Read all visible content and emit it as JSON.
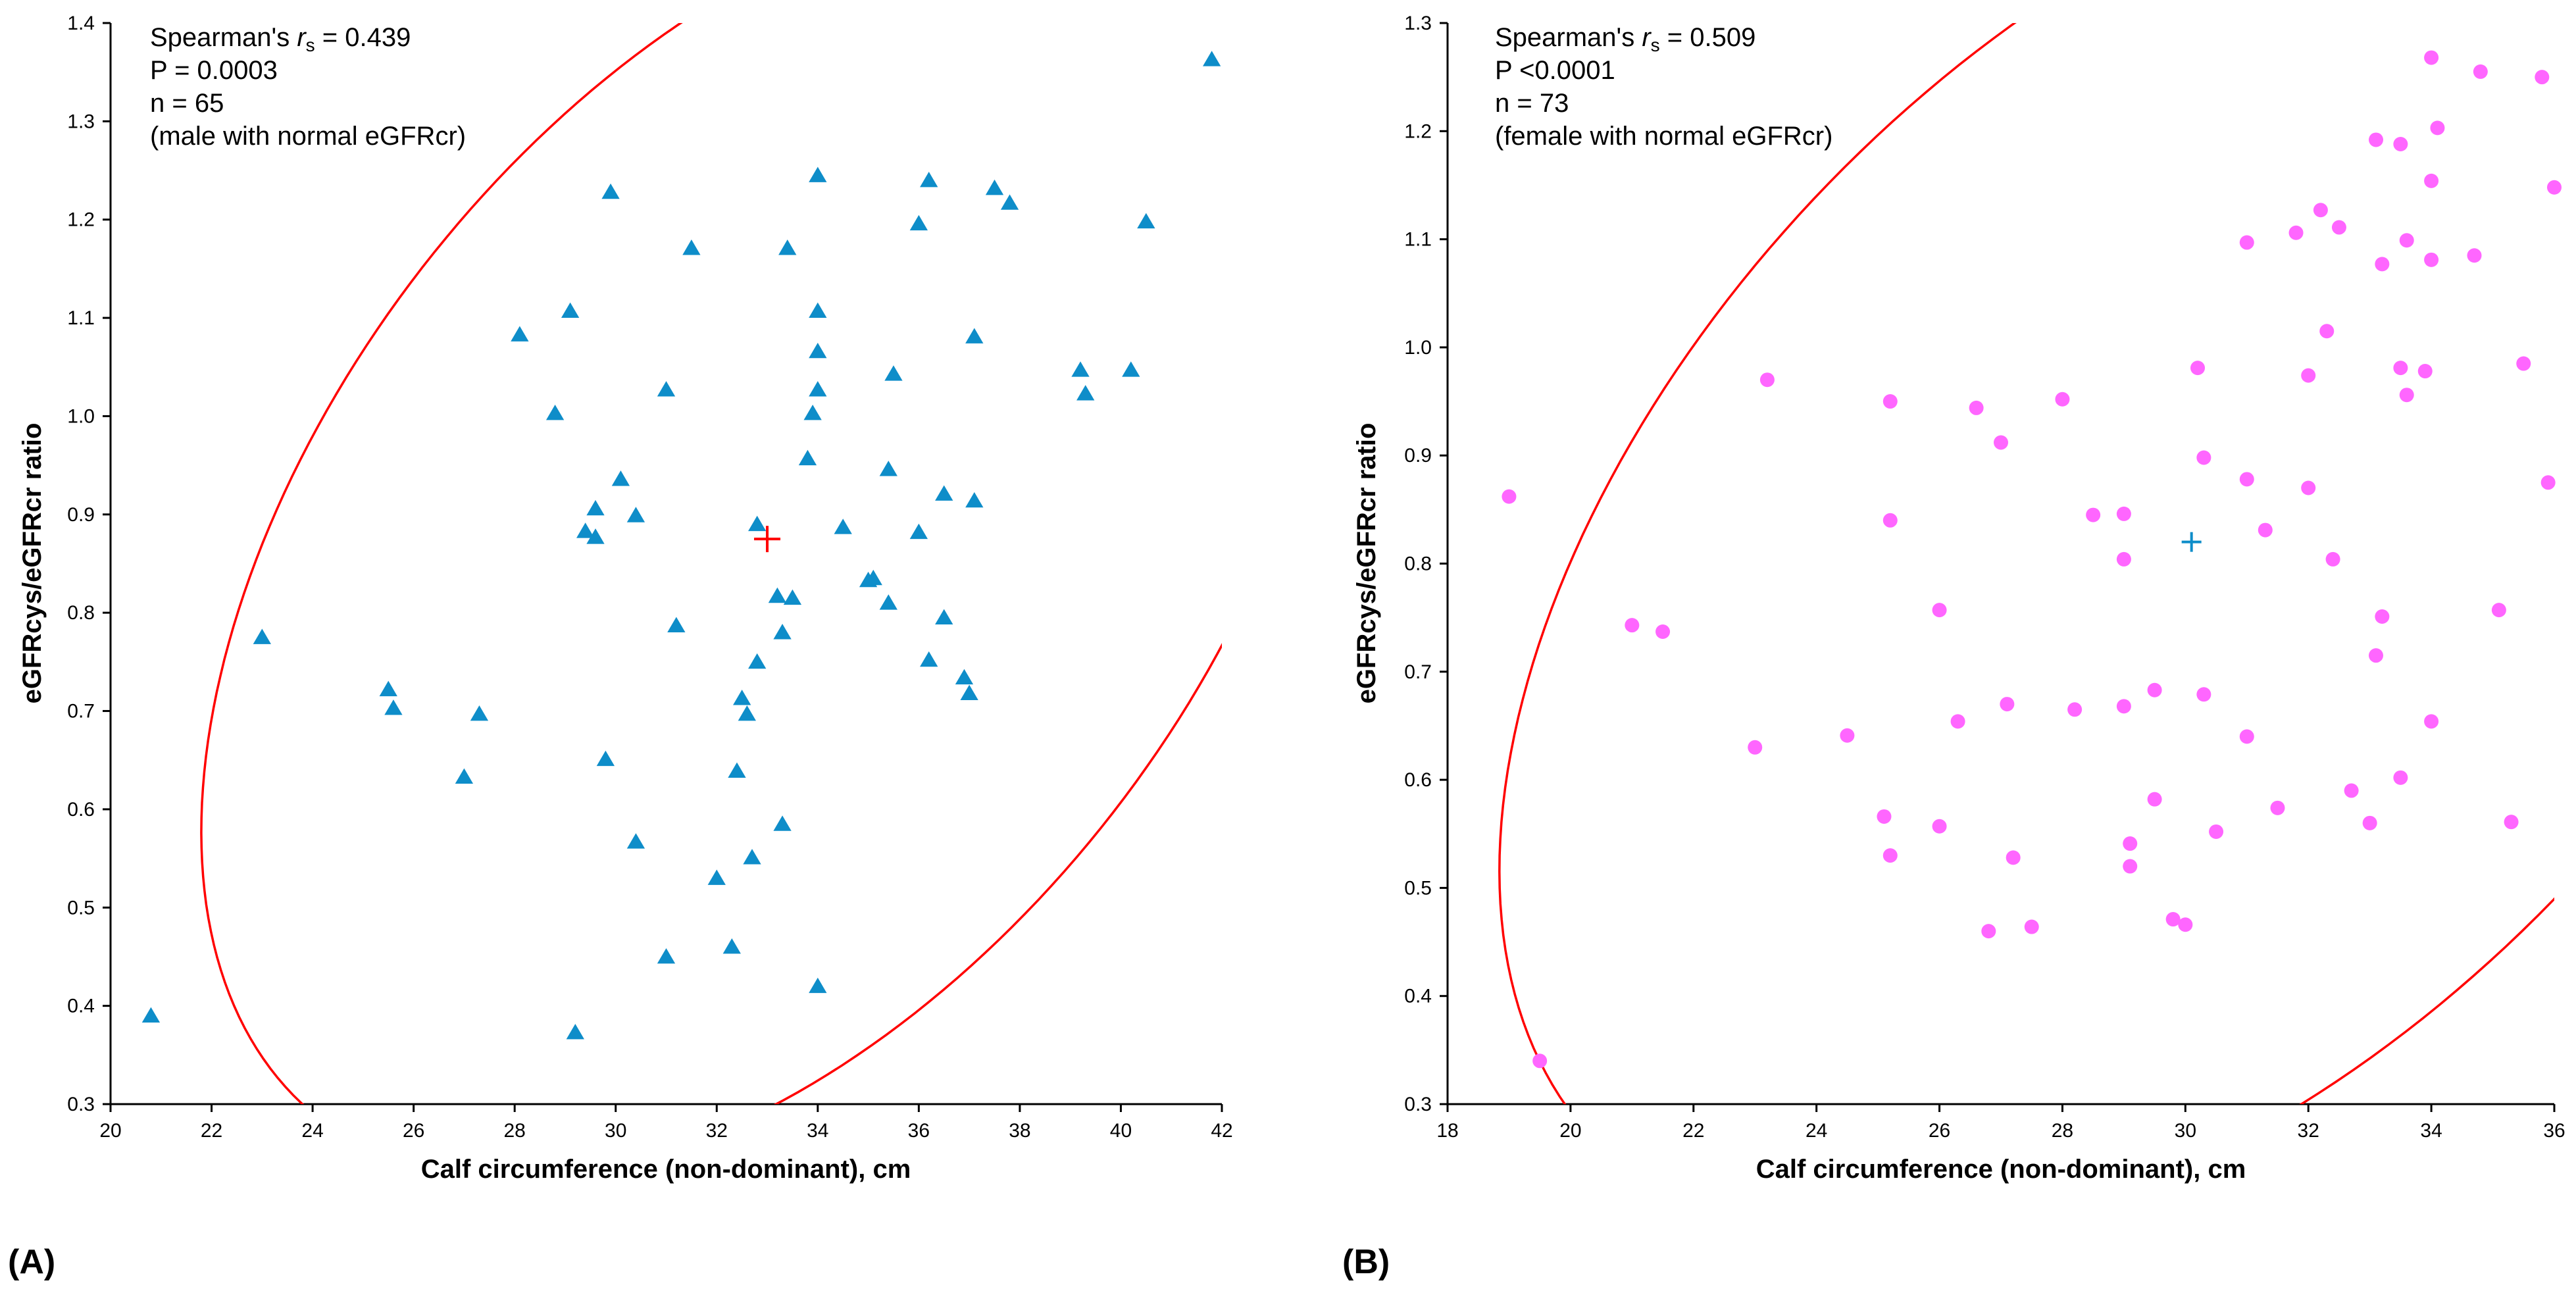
{
  "chart_data": [
    {
      "type": "scatter",
      "panel_label": "(A)",
      "xlabel": "Calf circumference (non-dominant), cm",
      "ylabel": "eGFRcys/eGFRcr ratio",
      "xlim": [
        20,
        42
      ],
      "ylim": [
        0.3,
        1.4
      ],
      "xticks": [
        "20",
        "22",
        "24",
        "26",
        "28",
        "30",
        "32",
        "34",
        "36",
        "38",
        "40",
        "42"
      ],
      "yticks": [
        "0.3",
        "0.4",
        "0.5",
        "0.6",
        "0.7",
        "0.8",
        "0.9",
        "1.0",
        "1.1",
        "1.2",
        "1.3",
        "1.4"
      ],
      "grid": false,
      "annotation": {
        "line1_prefix": "Spearman's ",
        "line1_r": "r",
        "line1_sub": "s",
        "line1_suffix": " = 0.439",
        "line2": "P = 0.0003",
        "line3": "n = 65",
        "line4": "(male with normal eGFRcr)"
      },
      "marker": "triangle",
      "marker_color": "#0e8dc9",
      "mean_marker_color": "#ff0000",
      "ellipse_color": "#ff0000",
      "mean": [
        33.0,
        0.875
      ],
      "points": [
        [
          20.8,
          0.39
        ],
        [
          23.0,
          0.775
        ],
        [
          25.5,
          0.722
        ],
        [
          25.6,
          0.703
        ],
        [
          27.0,
          0.633
        ],
        [
          27.3,
          0.697
        ],
        [
          28.1,
          1.083
        ],
        [
          28.8,
          1.003
        ],
        [
          29.1,
          1.107
        ],
        [
          29.2,
          0.373
        ],
        [
          29.4,
          0.883
        ],
        [
          29.6,
          0.906
        ],
        [
          29.6,
          0.877
        ],
        [
          29.8,
          0.651
        ],
        [
          29.9,
          1.228
        ],
        [
          30.1,
          0.936
        ],
        [
          30.4,
          0.899
        ],
        [
          30.4,
          0.567
        ],
        [
          31.0,
          1.027
        ],
        [
          31.0,
          0.45
        ],
        [
          31.2,
          0.787
        ],
        [
          31.5,
          1.171
        ],
        [
          32.0,
          0.53
        ],
        [
          32.3,
          0.46
        ],
        [
          32.4,
          0.639
        ],
        [
          32.5,
          0.713
        ],
        [
          32.6,
          0.697
        ],
        [
          32.7,
          0.551
        ],
        [
          32.8,
          0.75
        ],
        [
          32.8,
          0.89
        ],
        [
          33.2,
          0.817
        ],
        [
          33.3,
          0.78
        ],
        [
          33.3,
          0.585
        ],
        [
          33.4,
          1.171
        ],
        [
          33.5,
          0.815
        ],
        [
          33.8,
          0.957
        ],
        [
          33.9,
          1.003
        ],
        [
          34.0,
          1.245
        ],
        [
          34.0,
          1.107
        ],
        [
          34.0,
          1.066
        ],
        [
          34.0,
          1.027
        ],
        [
          34.0,
          0.42
        ],
        [
          34.5,
          0.887
        ],
        [
          35.0,
          0.833
        ],
        [
          35.1,
          0.835
        ],
        [
          35.4,
          0.946
        ],
        [
          35.4,
          0.81
        ],
        [
          35.5,
          1.043
        ],
        [
          36.0,
          1.196
        ],
        [
          36.0,
          0.882
        ],
        [
          36.2,
          1.24
        ],
        [
          36.2,
          0.752
        ],
        [
          36.5,
          0.921
        ],
        [
          36.5,
          0.795
        ],
        [
          36.9,
          0.734
        ],
        [
          37.0,
          0.718
        ],
        [
          37.1,
          1.081
        ],
        [
          37.1,
          0.914
        ],
        [
          37.5,
          1.232
        ],
        [
          37.8,
          1.217
        ],
        [
          39.2,
          1.047
        ],
        [
          39.3,
          1.023
        ],
        [
          40.2,
          1.047
        ],
        [
          40.5,
          1.198
        ],
        [
          41.8,
          1.363
        ]
      ]
    },
    {
      "type": "scatter",
      "panel_label": "(B)",
      "xlabel": "Calf circumference (non-dominant), cm",
      "ylabel": "eGFRcys/eGFRcr ratio",
      "xlim": [
        18,
        36
      ],
      "ylim": [
        0.3,
        1.3
      ],
      "xticks": [
        "18",
        "20",
        "22",
        "24",
        "26",
        "28",
        "30",
        "32",
        "34",
        "36"
      ],
      "yticks": [
        "0.3",
        "0.4",
        "0.5",
        "0.6",
        "0.7",
        "0.8",
        "0.9",
        "1.0",
        "1.1",
        "1.2",
        "1.3"
      ],
      "grid": false,
      "annotation": {
        "line1_prefix": "Spearman's ",
        "line1_r": "r",
        "line1_sub": "s",
        "line1_suffix": " = 0.509",
        "line2": "P <0.0001",
        "line3": "n = 73",
        "line4": "(female with normal eGFRcr)"
      },
      "marker": "circle",
      "marker_color": "#ff66ff",
      "mean_marker_color": "#0e8dc9",
      "ellipse_color": "#ff0000",
      "mean": [
        30.1,
        0.82
      ],
      "points": [
        [
          19.0,
          0.862
        ],
        [
          19.5,
          0.34
        ],
        [
          21.0,
          0.743
        ],
        [
          21.5,
          0.737
        ],
        [
          23.0,
          0.63
        ],
        [
          23.2,
          0.97
        ],
        [
          24.5,
          0.641
        ],
        [
          25.1,
          0.566
        ],
        [
          25.2,
          0.53
        ],
        [
          25.2,
          0.84
        ],
        [
          25.2,
          0.95
        ],
        [
          26.0,
          0.757
        ],
        [
          26.0,
          0.557
        ],
        [
          26.3,
          0.654
        ],
        [
          26.6,
          0.944
        ],
        [
          26.8,
          0.46
        ],
        [
          27.0,
          0.912
        ],
        [
          27.1,
          0.67
        ],
        [
          27.2,
          0.528
        ],
        [
          27.5,
          0.464
        ],
        [
          28.0,
          0.952
        ],
        [
          28.2,
          0.665
        ],
        [
          28.5,
          0.845
        ],
        [
          29.0,
          0.846
        ],
        [
          29.0,
          0.804
        ],
        [
          29.0,
          0.668
        ],
        [
          29.1,
          0.541
        ],
        [
          29.1,
          0.52
        ],
        [
          29.5,
          0.683
        ],
        [
          29.5,
          0.582
        ],
        [
          29.8,
          0.471
        ],
        [
          30.0,
          0.466
        ],
        [
          30.2,
          0.981
        ],
        [
          30.3,
          0.898
        ],
        [
          30.3,
          0.679
        ],
        [
          30.5,
          0.552
        ],
        [
          31.0,
          1.097
        ],
        [
          31.0,
          0.878
        ],
        [
          31.0,
          0.64
        ],
        [
          31.3,
          0.831
        ],
        [
          31.5,
          0.574
        ],
        [
          31.8,
          1.106
        ],
        [
          32.0,
          0.974
        ],
        [
          32.0,
          0.87
        ],
        [
          32.2,
          1.127
        ],
        [
          32.3,
          1.015
        ],
        [
          32.4,
          0.804
        ],
        [
          32.5,
          1.111
        ],
        [
          32.7,
          0.59
        ],
        [
          33.0,
          0.56
        ],
        [
          33.1,
          1.192
        ],
        [
          33.1,
          0.715
        ],
        [
          33.2,
          0.751
        ],
        [
          33.2,
          1.077
        ],
        [
          33.5,
          1.188
        ],
        [
          33.5,
          0.981
        ],
        [
          33.5,
          0.602
        ],
        [
          33.6,
          1.099
        ],
        [
          33.6,
          0.956
        ],
        [
          33.9,
          0.978
        ],
        [
          34.0,
          1.268
        ],
        [
          34.0,
          1.154
        ],
        [
          34.0,
          1.081
        ],
        [
          34.0,
          0.654
        ],
        [
          34.1,
          1.203
        ],
        [
          34.7,
          1.085
        ],
        [
          34.8,
          1.255
        ],
        [
          35.1,
          0.757
        ],
        [
          35.3,
          0.561
        ],
        [
          35.5,
          0.985
        ],
        [
          35.8,
          1.25
        ],
        [
          35.9,
          0.875
        ],
        [
          36.0,
          1.148
        ]
      ]
    }
  ]
}
